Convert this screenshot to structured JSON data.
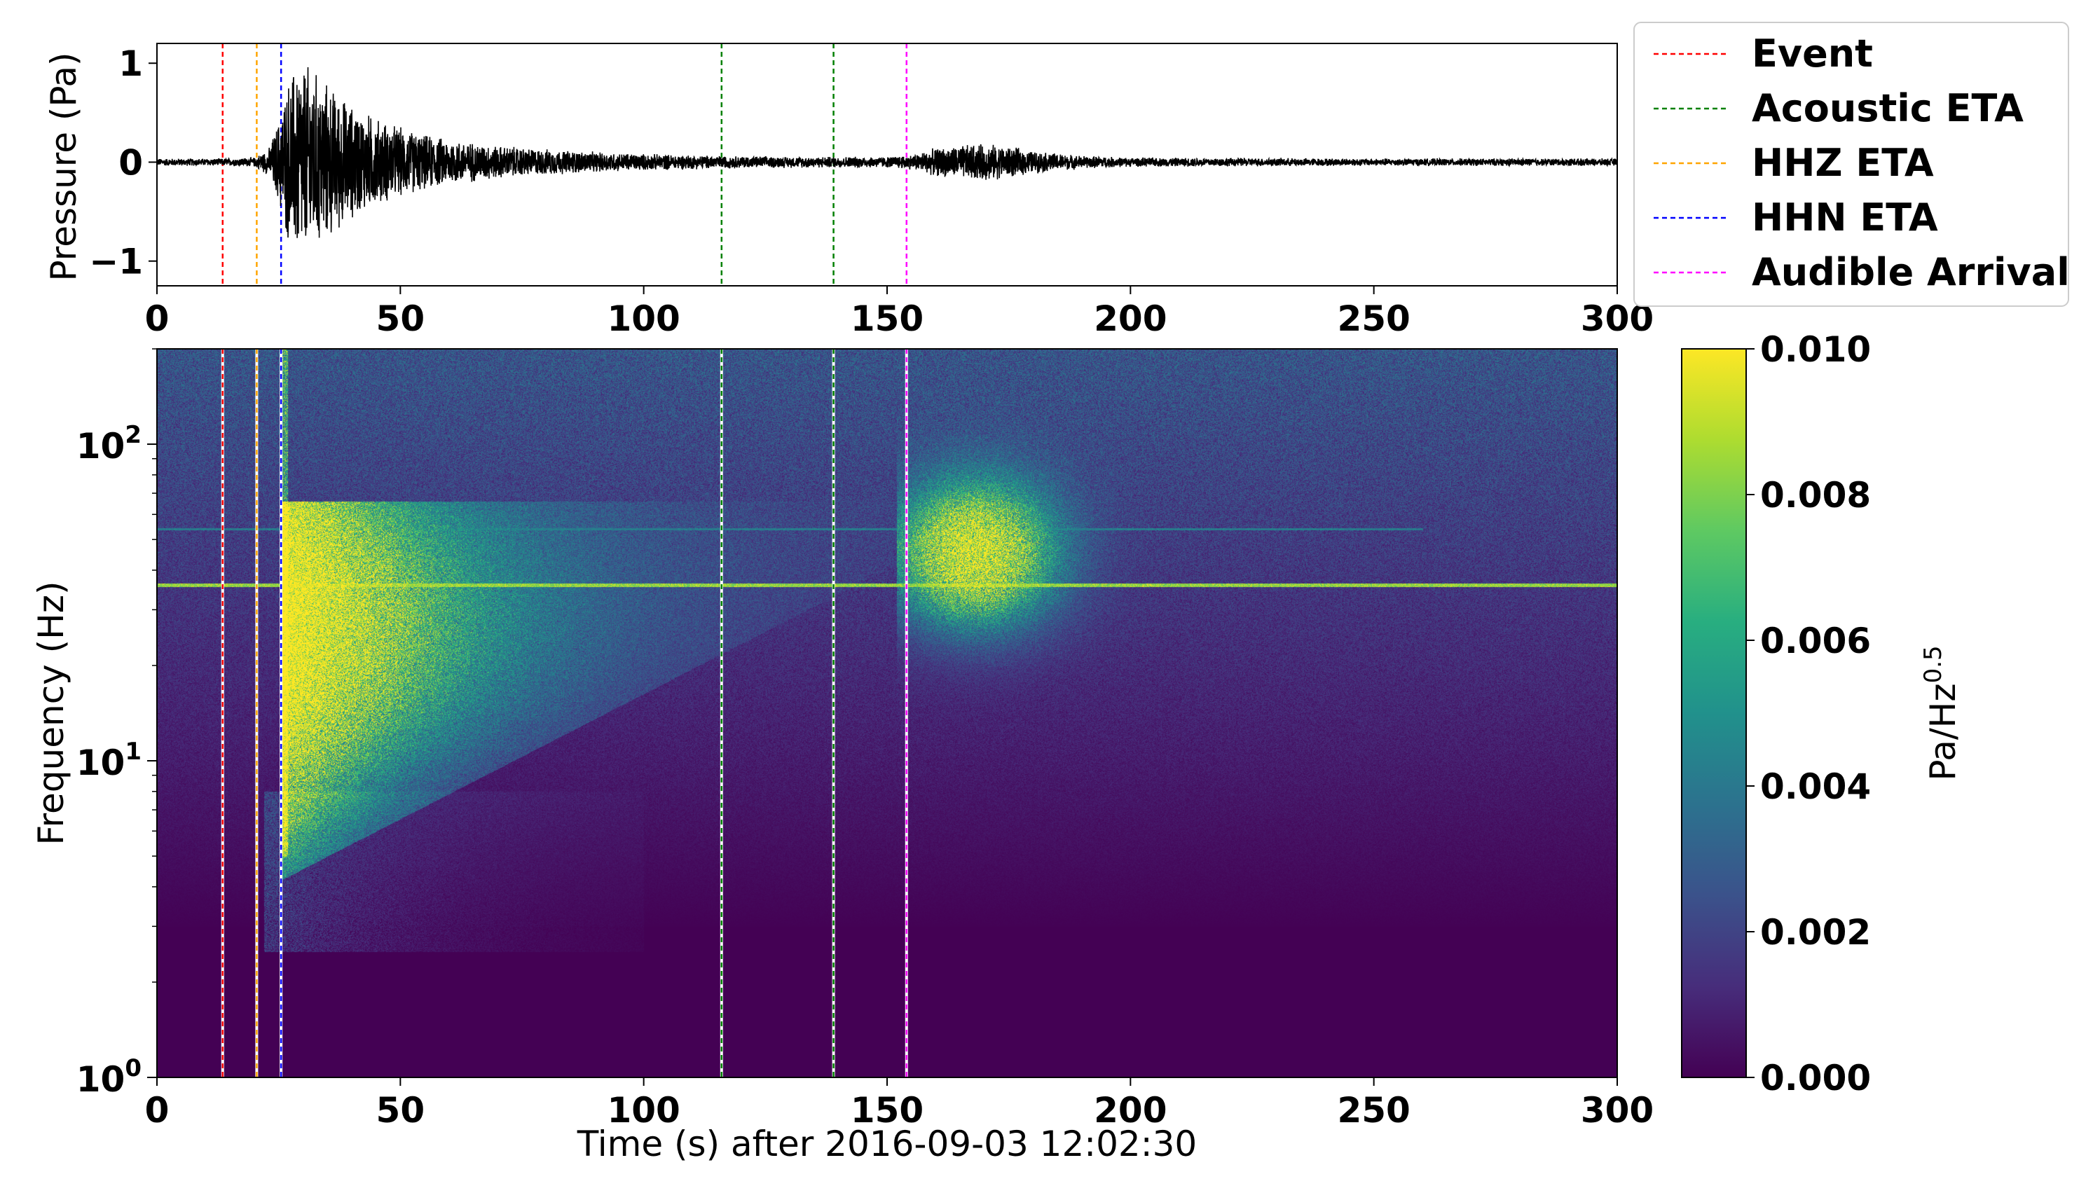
{
  "chart_data": [
    {
      "type": "line",
      "panel": "waveform",
      "ylabel": "Pressure (Pa)",
      "xlabel": "",
      "xlim": [
        0,
        300
      ],
      "ylim": [
        -1.25,
        1.2
      ],
      "xticks": [
        0,
        50,
        100,
        150,
        200,
        250,
        300
      ],
      "yticks": [
        -1,
        0,
        1
      ],
      "envelope": {
        "t": [
          0,
          13,
          20,
          23,
          25,
          27,
          29,
          31,
          33,
          36,
          40,
          45,
          50,
          55,
          60,
          70,
          80,
          90,
          100,
          115,
          130,
          150,
          155,
          160,
          165,
          170,
          175,
          180,
          190,
          200,
          250,
          300
        ],
        "amp": [
          0.04,
          0.04,
          0.05,
          0.15,
          0.45,
          0.9,
          1.1,
          1.05,
          0.95,
          0.8,
          0.62,
          0.48,
          0.38,
          0.3,
          0.25,
          0.18,
          0.14,
          0.11,
          0.09,
          0.07,
          0.06,
          0.06,
          0.08,
          0.15,
          0.18,
          0.2,
          0.17,
          0.12,
          0.07,
          0.05,
          0.04,
          0.04
        ]
      },
      "legend_location": "outside-top-right",
      "series": [
        {
          "name": "Event",
          "x": 13.5,
          "color": "#ff0000"
        },
        {
          "name": "Acoustic ETA",
          "x": 116,
          "color": "#008000"
        },
        {
          "name": "Acoustic ETA",
          "x": 139,
          "color": "#008000"
        },
        {
          "name": "HHZ ETA",
          "x": 20.5,
          "color": "#ffa500"
        },
        {
          "name": "HHN ETA",
          "x": 25.5,
          "color": "#0000ff"
        },
        {
          "name": "Audible Arrival",
          "x": 154,
          "color": "#ff00ff"
        }
      ]
    },
    {
      "type": "heatmap",
      "panel": "spectrogram",
      "xlabel": "Time (s) after 2016-09-03 12:02:30",
      "ylabel": "Frequency (Hz)",
      "xlim": [
        0,
        300
      ],
      "ylim": [
        1,
        200
      ],
      "yscale": "log",
      "xticks": [
        0,
        50,
        100,
        150,
        200,
        250,
        300
      ],
      "yticks": [
        {
          "value": 1,
          "base": "10",
          "exp": "0"
        },
        {
          "value": 10,
          "base": "10",
          "exp": "1"
        },
        {
          "value": 100,
          "base": "10",
          "exp": "2"
        }
      ],
      "colorbar": {
        "label_base": "Pa/Hz",
        "label_exp": "0.5",
        "range": [
          0,
          0.01
        ],
        "ticks": [
          "0.000",
          "0.002",
          "0.004",
          "0.006",
          "0.008",
          "0.010"
        ],
        "colormap": "viridis"
      },
      "features": [
        {
          "kind": "main-arrival",
          "t_start": 25.5,
          "t_peak": 28,
          "f_low": 6,
          "f_high": 60
        },
        {
          "kind": "secondary-arrival",
          "t_start": 154,
          "t_peak": 168,
          "f_low": 20,
          "f_high": 80
        },
        {
          "kind": "tonal-line",
          "frequency": 36,
          "t_start": 0,
          "t_end": 300
        }
      ]
    }
  ],
  "colors": {
    "event": "#ff0000",
    "acoustic": "#008000",
    "hhz": "#ffa500",
    "hhn": "#0000ff",
    "audible": "#ff00ff"
  }
}
